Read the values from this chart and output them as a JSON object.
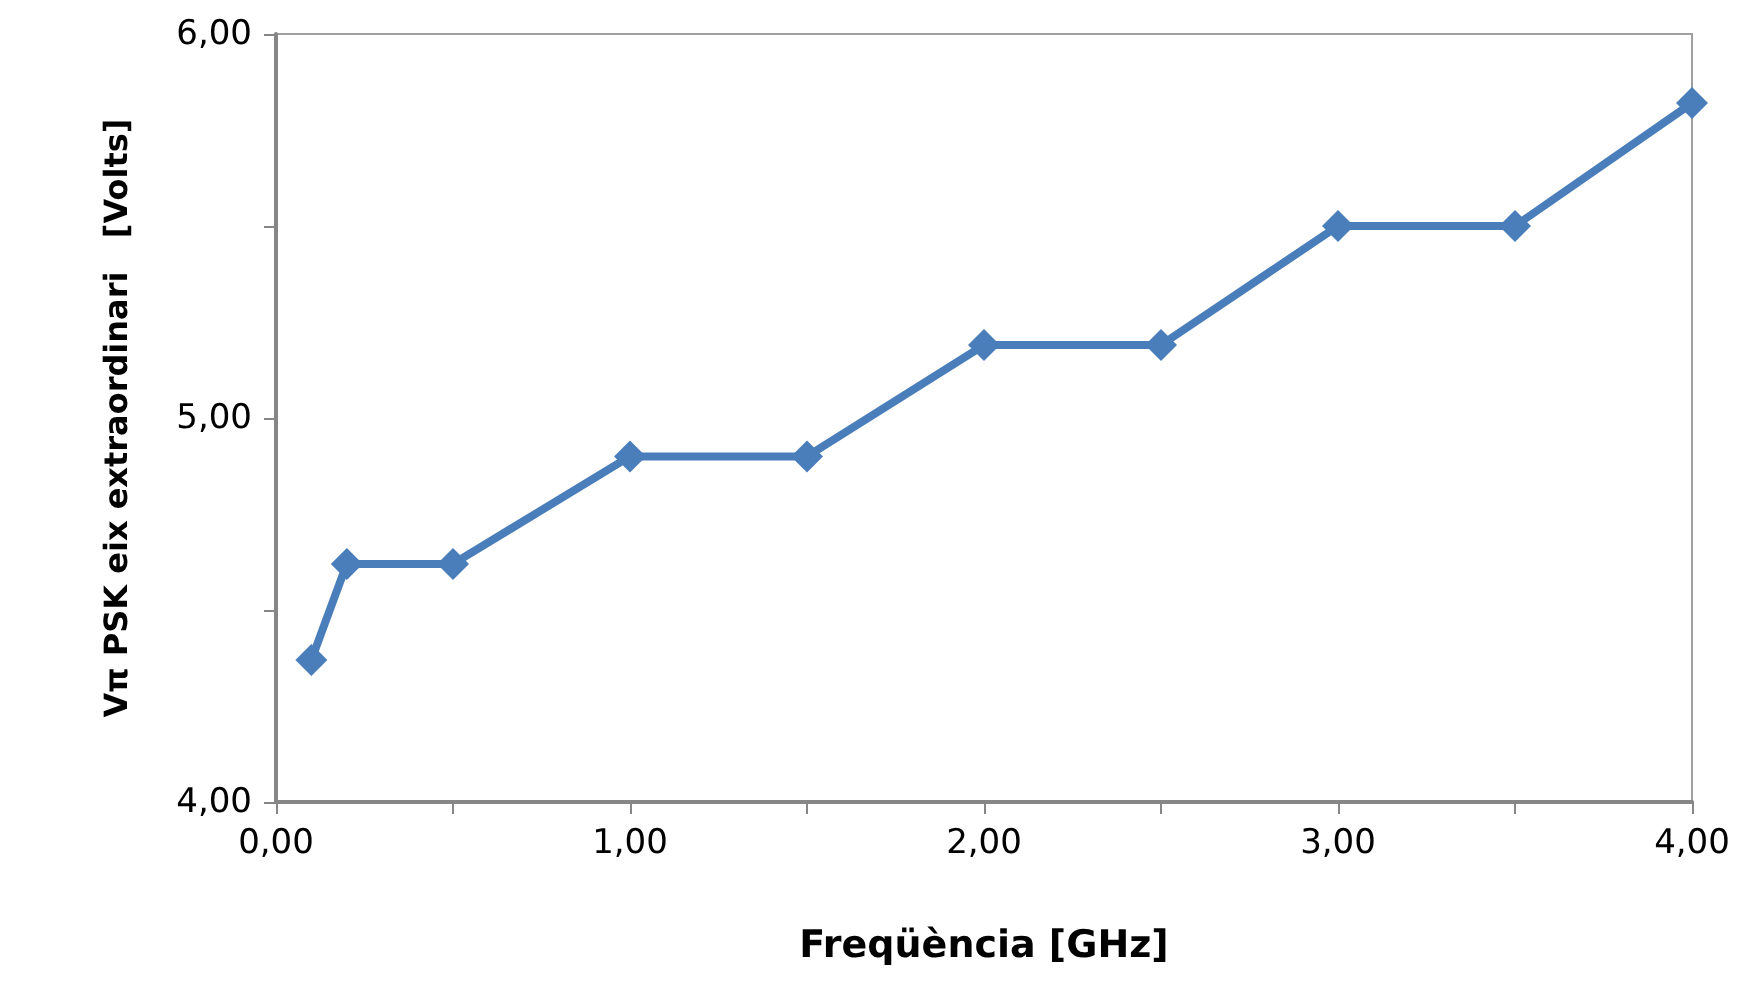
{
  "chart_data": {
    "type": "line",
    "xlabel": "Freqüència [GHz]",
    "ylabel": "Vπ PSK eix extraordinari   [Volts]",
    "x": [
      0.1,
      0.2,
      0.5,
      1.0,
      1.5,
      2.0,
      2.5,
      3.0,
      3.5,
      4.0
    ],
    "series": [
      {
        "color": "#4a7ebb",
        "values": [
          4.37,
          4.62,
          4.62,
          4.9,
          4.9,
          5.19,
          5.19,
          5.5,
          5.5,
          5.82
        ]
      }
    ],
    "xlim": [
      0,
      4
    ],
    "ylim": [
      4,
      6
    ],
    "xticks": [
      {
        "value": 0,
        "label": "0,00"
      },
      {
        "value": 0.5,
        "label": null
      },
      {
        "value": 1,
        "label": "1,00"
      },
      {
        "value": 1.5,
        "label": null
      },
      {
        "value": 2,
        "label": "2,00"
      },
      {
        "value": 2.5,
        "label": null
      },
      {
        "value": 3,
        "label": "3,00"
      },
      {
        "value": 3.5,
        "label": null
      },
      {
        "value": 4,
        "label": "4,00"
      }
    ],
    "yticks": [
      {
        "value": 4,
        "label": "4,00"
      },
      {
        "value": 4.5,
        "label": null
      },
      {
        "value": 5,
        "label": "5,00"
      },
      {
        "value": 5.5,
        "label": null
      },
      {
        "value": 6,
        "label": "6,00"
      }
    ],
    "grid": false,
    "marker": "diamond",
    "line_style": "solid"
  }
}
